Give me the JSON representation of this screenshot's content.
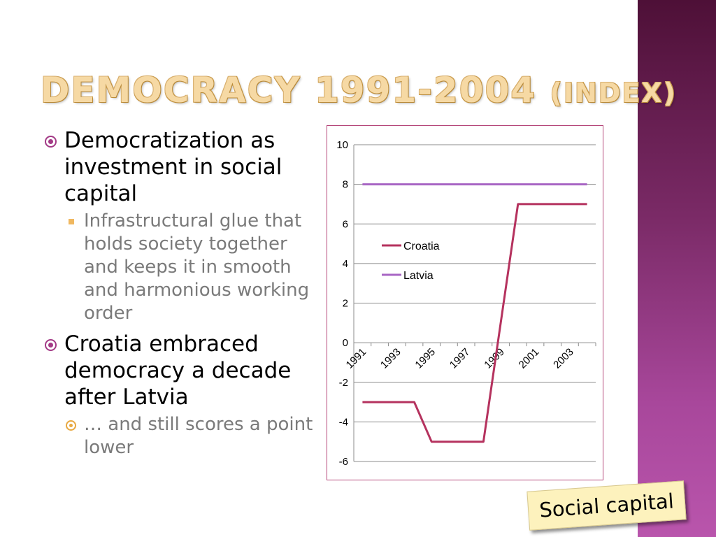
{
  "slide": {
    "title_main": "DEMOCRACY 1991-2004",
    "title_sub": "(INDEX)",
    "bullets": [
      {
        "text": "Democratization as investment in social capital",
        "sub": "Infrastructural glue that holds society together and keeps it in smooth and harmonious working order"
      },
      {
        "text": "Croatia embraced democracy a decade after Latvia",
        "sub": "… and still scores a point lower"
      }
    ],
    "sticker": "Social capital"
  },
  "colors": {
    "croatia": "#b5325e",
    "latvia": "#a866c4",
    "accent": "#a33a86",
    "band": "#7a2a66"
  },
  "chart_data": {
    "type": "line",
    "title": "",
    "xlabel": "",
    "ylabel": "",
    "x": [
      1991,
      1992,
      1993,
      1994,
      1995,
      1996,
      1997,
      1998,
      1999,
      2000,
      2001,
      2002,
      2003,
      2004
    ],
    "x_tick_labels": [
      "1991",
      "1993",
      "1995",
      "1997",
      "1999",
      "2001",
      "2003"
    ],
    "ylim": [
      -6,
      10
    ],
    "y_ticks": [
      10,
      8,
      6,
      4,
      2,
      0,
      -2,
      -4,
      -6
    ],
    "grid": true,
    "legend_position": "left-middle",
    "series": [
      {
        "name": "Croatia",
        "values": [
          -3,
          -3,
          -3,
          -3,
          -5,
          -5,
          -5,
          -5,
          1,
          7,
          7,
          7,
          7,
          7
        ]
      },
      {
        "name": "Latvia",
        "values": [
          8,
          8,
          8,
          8,
          8,
          8,
          8,
          8,
          8,
          8,
          8,
          8,
          8,
          8
        ]
      }
    ]
  }
}
